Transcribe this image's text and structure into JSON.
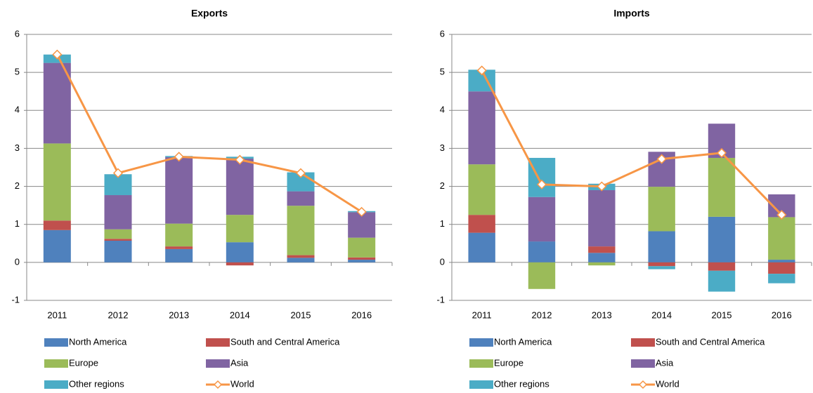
{
  "chart_data": [
    {
      "type": "bar",
      "title": "Exports",
      "stacked": true,
      "grid": true,
      "categories": [
        "2011",
        "2012",
        "2013",
        "2014",
        "2015",
        "2016"
      ],
      "ylim": [
        -1,
        6
      ],
      "yticks": [
        -1,
        0,
        1,
        2,
        3,
        4,
        5,
        6
      ],
      "series": [
        {
          "name": "North America",
          "color": "#4f81bd",
          "values": [
            0.85,
            0.57,
            0.35,
            0.53,
            0.12,
            0.07
          ]
        },
        {
          "name": "South and Central America",
          "color": "#c0504d",
          "values": [
            0.25,
            0.05,
            0.07,
            -0.08,
            0.07,
            0.06
          ]
        },
        {
          "name": "Europe",
          "color": "#9bbb59",
          "values": [
            2.03,
            0.25,
            0.6,
            0.72,
            1.3,
            0.52
          ]
        },
        {
          "name": "Asia",
          "color": "#8064a2",
          "values": [
            2.12,
            0.9,
            1.75,
            1.48,
            0.38,
            0.67
          ]
        },
        {
          "name": "Other regions",
          "color": "#4bacc6",
          "values": [
            0.22,
            0.55,
            0.03,
            0.05,
            0.5,
            0.03
          ]
        },
        {
          "name": "World",
          "color": "#f79646",
          "type": "line",
          "values": [
            5.47,
            2.35,
            2.78,
            2.7,
            2.35,
            1.33
          ]
        }
      ]
    },
    {
      "type": "bar",
      "title": "Imports",
      "stacked": true,
      "grid": true,
      "categories": [
        "2011",
        "2012",
        "2013",
        "2014",
        "2015",
        "2016"
      ],
      "ylim": [
        -1,
        6
      ],
      "yticks": [
        -1,
        0,
        1,
        2,
        3,
        4,
        5,
        6
      ],
      "series": [
        {
          "name": "North America",
          "color": "#4f81bd",
          "values": [
            0.78,
            0.55,
            0.25,
            0.82,
            1.2,
            0.07
          ]
        },
        {
          "name": "South and Central America",
          "color": "#c0504d",
          "values": [
            0.47,
            0,
            0.17,
            -0.1,
            -0.22,
            -0.3
          ]
        },
        {
          "name": "Europe",
          "color": "#9bbb59",
          "values": [
            1.33,
            -0.7,
            -0.08,
            1.17,
            1.55,
            1.12
          ]
        },
        {
          "name": "Asia",
          "color": "#8064a2",
          "values": [
            1.92,
            1.17,
            1.48,
            0.92,
            0.9,
            0.6
          ]
        },
        {
          "name": "Other regions",
          "color": "#4bacc6",
          "values": [
            0.57,
            1.03,
            0.17,
            -0.08,
            -0.55,
            -0.25
          ]
        },
        {
          "name": "World",
          "color": "#f79646",
          "type": "line",
          "values": [
            5.05,
            2.05,
            2.0,
            2.72,
            2.88,
            1.25
          ]
        }
      ]
    }
  ]
}
